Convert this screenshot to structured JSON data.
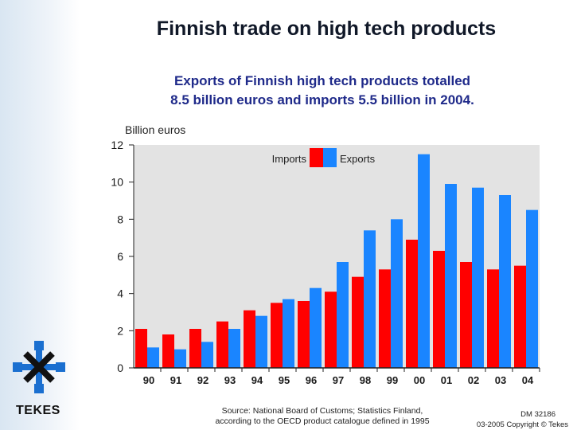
{
  "header": {
    "title": "Finnish trade on high tech products",
    "subtitle_line1": "Exports of Finnish high tech products totalled",
    "subtitle_line2": "8.5 billion euros and imports 5.5 billion in 2004."
  },
  "branding": {
    "logo_text": "TEKES",
    "logo_icon": "tekes-snowflake-icon"
  },
  "footer": {
    "source_line1": "Source: National Board of Customs; Statistics Finland,",
    "source_line2": "according to the OECD product catalogue defined in 1995",
    "doc_id": "DM 32186",
    "copyright": "03-2005 Copyright © Tekes"
  },
  "colors": {
    "imports": "#ff0000",
    "exports": "#1a85ff",
    "plot_bg": "#e3e3e3",
    "axis": "#222222"
  },
  "chart_data": {
    "type": "bar",
    "title": "Finnish trade on high tech products",
    "ylabel": "Billion euros",
    "xlabel": "",
    "ylim": [
      0,
      12
    ],
    "yticks": [
      0,
      2,
      4,
      6,
      8,
      10,
      12
    ],
    "legend_position": "top-center",
    "categories": [
      "90",
      "91",
      "92",
      "93",
      "94",
      "95",
      "96",
      "97",
      "98",
      "99",
      "00",
      "01",
      "02",
      "03",
      "04"
    ],
    "series": [
      {
        "name": "Imports",
        "values": [
          2.1,
          1.8,
          2.1,
          2.5,
          3.1,
          3.5,
          3.6,
          4.1,
          4.9,
          5.3,
          6.9,
          6.3,
          5.7,
          5.3,
          5.5
        ]
      },
      {
        "name": "Exports",
        "values": [
          1.1,
          1.0,
          1.4,
          2.1,
          2.8,
          3.7,
          4.3,
          5.7,
          7.4,
          8.0,
          11.5,
          9.9,
          9.7,
          9.3,
          8.5
        ]
      }
    ]
  }
}
